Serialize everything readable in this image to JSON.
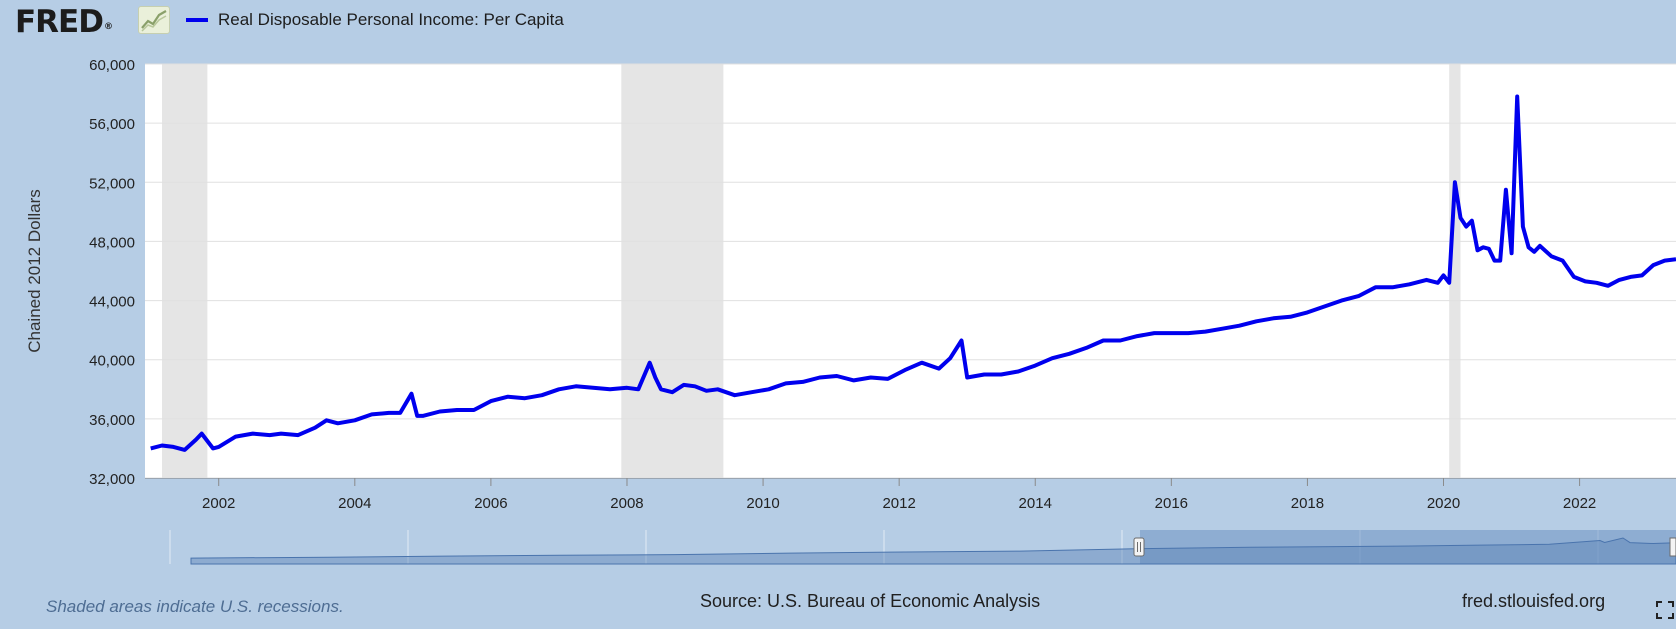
{
  "logo": {
    "text": "FRED",
    "reg": "®",
    "icon": "line-chart-icon"
  },
  "legend": {
    "series_name": "Real Disposable Personal Income: Per Capita",
    "color": "#0000ee"
  },
  "footer": {
    "note": "Shaded areas indicate U.S. recessions.",
    "source": "Source: U.S. Bureau of Economic Analysis",
    "site": "fred.stlouisfed.org",
    "fullscreen_icon": "fullscreen-icon"
  },
  "colors": {
    "background": "#b6cde5",
    "plot": "#ffffff",
    "line": "#0000ee",
    "recession": "#e5e5e5",
    "navigator_fill": "#5b82b5"
  },
  "chart_data": {
    "type": "line",
    "ylabel": "Chained 2012 Dollars",
    "xlabel": "",
    "xlim": [
      "2000-12-01",
      "2023-06-01"
    ],
    "ylim": [
      32000,
      60000
    ],
    "yticks": [
      "32,000",
      "36,000",
      "40,000",
      "44,000",
      "48,000",
      "52,000",
      "56,000",
      "60,000"
    ],
    "xticks": [
      "2002",
      "2004",
      "2006",
      "2008",
      "2010",
      "2012",
      "2014",
      "2016",
      "2018",
      "2020",
      "2022"
    ],
    "grid": "horizontal",
    "recessions": [
      [
        "2001-03",
        "2001-11"
      ],
      [
        "2007-12",
        "2009-06"
      ],
      [
        "2020-02",
        "2020-04"
      ]
    ],
    "series": [
      {
        "name": "Real Disposable Personal Income: Per Capita",
        "color": "#0000ee",
        "x": [
          "2001-01",
          "2001-03",
          "2001-05",
          "2001-07",
          "2001-09",
          "2001-10",
          "2001-12",
          "2002-01",
          "2002-04",
          "2002-07",
          "2002-10",
          "2002-12",
          "2003-03",
          "2003-06",
          "2003-08",
          "2003-10",
          "2004-01",
          "2004-04",
          "2004-07",
          "2004-09",
          "2004-11",
          "2004-12",
          "2005-01",
          "2005-04",
          "2005-07",
          "2005-10",
          "2006-01",
          "2006-04",
          "2006-07",
          "2006-10",
          "2007-01",
          "2007-04",
          "2007-07",
          "2007-10",
          "2008-01",
          "2008-03",
          "2008-05",
          "2008-06",
          "2008-07",
          "2008-09",
          "2008-11",
          "2009-01",
          "2009-03",
          "2009-05",
          "2009-08",
          "2009-11",
          "2010-02",
          "2010-05",
          "2010-08",
          "2010-11",
          "2011-02",
          "2011-05",
          "2011-08",
          "2011-11",
          "2012-02",
          "2012-05",
          "2012-08",
          "2012-10",
          "2012-12",
          "2013-01",
          "2013-04",
          "2013-07",
          "2013-10",
          "2014-01",
          "2014-04",
          "2014-07",
          "2014-10",
          "2015-01",
          "2015-04",
          "2015-07",
          "2015-10",
          "2016-01",
          "2016-04",
          "2016-07",
          "2016-10",
          "2017-01",
          "2017-04",
          "2017-07",
          "2017-10",
          "2018-01",
          "2018-04",
          "2018-07",
          "2018-10",
          "2019-01",
          "2019-04",
          "2019-07",
          "2019-10",
          "2019-12",
          "2020-01",
          "2020-02",
          "2020-03",
          "2020-04",
          "2020-05",
          "2020-06",
          "2020-07",
          "2020-08",
          "2020-09",
          "2020-10",
          "2020-11",
          "2020-12",
          "2021-01",
          "2021-02",
          "2021-03",
          "2021-04",
          "2021-05",
          "2021-06",
          "2021-08",
          "2021-10",
          "2021-12",
          "2022-02",
          "2022-04",
          "2022-06",
          "2022-08",
          "2022-10",
          "2022-12",
          "2023-02",
          "2023-04",
          "2023-06"
        ],
        "y": [
          34000,
          34200,
          34100,
          33900,
          34600,
          35000,
          34000,
          34100,
          34800,
          35000,
          34900,
          35000,
          34900,
          35400,
          35900,
          35700,
          35900,
          36300,
          36400,
          36400,
          37700,
          36200,
          36200,
          36500,
          36600,
          36600,
          37200,
          37500,
          37400,
          37600,
          38000,
          38200,
          38100,
          38000,
          38100,
          38000,
          39800,
          38800,
          38000,
          37800,
          38300,
          38200,
          37900,
          38000,
          37600,
          37800,
          38000,
          38400,
          38500,
          38800,
          38900,
          38600,
          38800,
          38700,
          39300,
          39800,
          39400,
          40100,
          41300,
          38800,
          39000,
          39000,
          39200,
          39600,
          40100,
          40400,
          40800,
          41300,
          41300,
          41600,
          41800,
          41800,
          41800,
          41900,
          42100,
          42300,
          42600,
          42800,
          42900,
          43200,
          43600,
          44000,
          44300,
          44900,
          44900,
          45100,
          45400,
          45200,
          45700,
          45200,
          52000,
          49600,
          49000,
          49400,
          47400,
          47600,
          47500,
          46700,
          46700,
          51500,
          47200,
          57800,
          49000,
          47600,
          47300,
          47700,
          47000,
          46700,
          45600,
          45300,
          45200,
          45000,
          45400,
          45600,
          45700,
          46400,
          46700,
          46800
        ]
      }
    ]
  }
}
